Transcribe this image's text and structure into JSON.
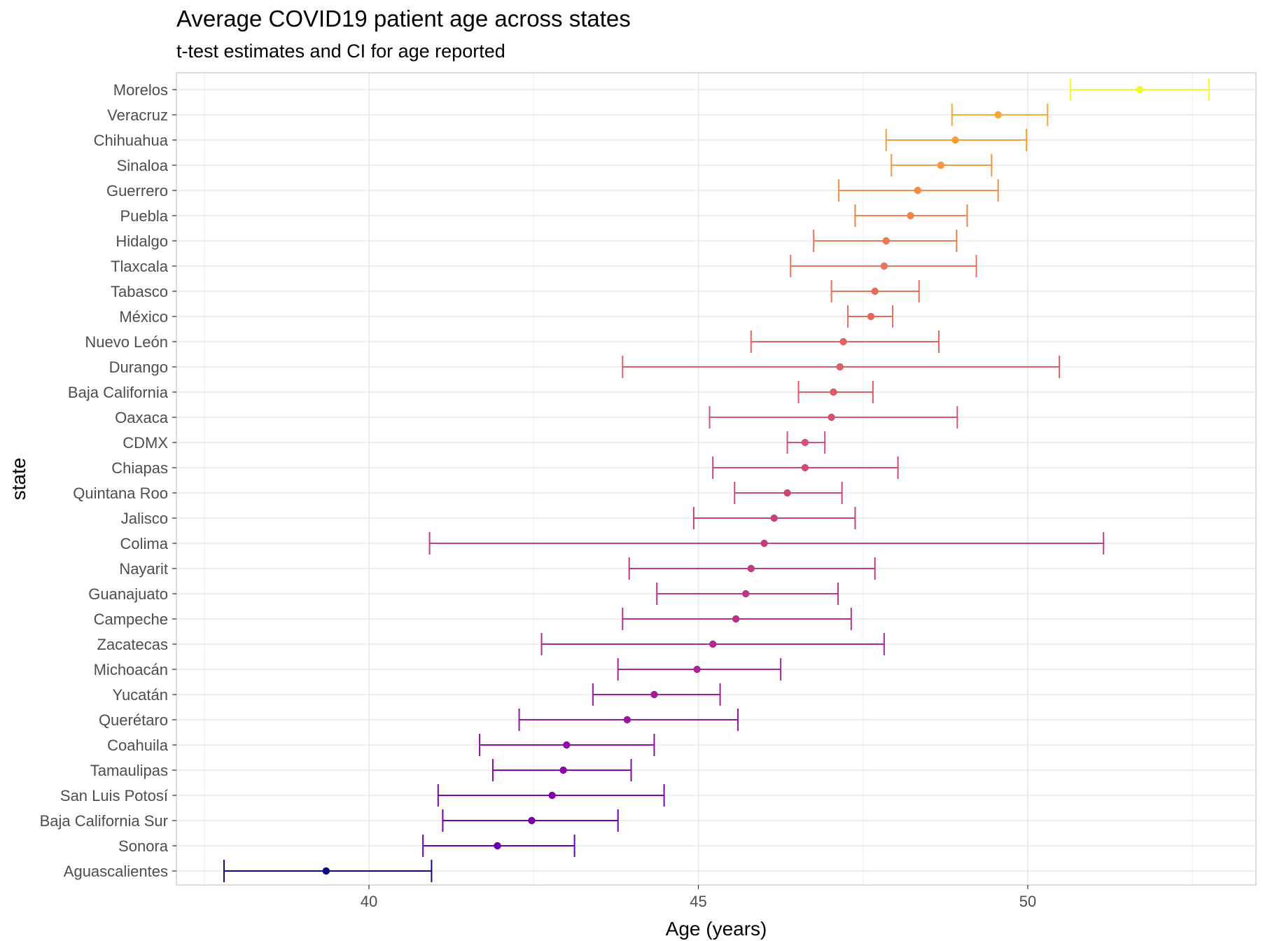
{
  "chart_data": {
    "type": "errorbar",
    "title": "Average COVID19 patient age across states",
    "subtitle": "t-test estimates and CI for age reported",
    "xlabel": "Age (years)",
    "ylabel": "state",
    "xlim": [
      37.0,
      53.4
    ],
    "xticks": [
      40,
      45,
      50
    ],
    "grid": true,
    "legend": "none",
    "color_scale": [
      "#0d0887",
      "#7e03a8",
      "#cc4778",
      "#f89540",
      "#f0f921"
    ],
    "rows": [
      {
        "state": "Morelos",
        "estimate": 51.7,
        "low": 50.65,
        "high": 52.75,
        "color": "#f0f921"
      },
      {
        "state": "Veracruz",
        "estimate": 49.55,
        "low": 48.85,
        "high": 50.3,
        "color": "#fca636"
      },
      {
        "state": "Chihuahua",
        "estimate": 48.9,
        "low": 47.85,
        "high": 49.98,
        "color": "#fa9e3b"
      },
      {
        "state": "Sinaloa",
        "estimate": 48.68,
        "low": 47.93,
        "high": 49.45,
        "color": "#f89540"
      },
      {
        "state": "Guerrero",
        "estimate": 48.33,
        "low": 47.13,
        "high": 49.55,
        "color": "#f58c46"
      },
      {
        "state": "Puebla",
        "estimate": 48.22,
        "low": 47.38,
        "high": 49.08,
        "color": "#f1844b"
      },
      {
        "state": "Hidalgo",
        "estimate": 47.85,
        "low": 46.75,
        "high": 48.92,
        "color": "#ed7953"
      },
      {
        "state": "Tlaxcala",
        "estimate": 47.82,
        "low": 46.4,
        "high": 49.22,
        "color": "#ea7457"
      },
      {
        "state": "Tabasco",
        "estimate": 47.68,
        "low": 47.02,
        "high": 48.35,
        "color": "#e76f5a"
      },
      {
        "state": "México",
        "estimate": 47.62,
        "low": 47.27,
        "high": 47.95,
        "color": "#e36a5d"
      },
      {
        "state": "Nuevo León",
        "estimate": 47.2,
        "low": 45.8,
        "high": 48.65,
        "color": "#e16462"
      },
      {
        "state": "Durango",
        "estimate": 47.15,
        "low": 43.85,
        "high": 50.48,
        "color": "#dd5e66"
      },
      {
        "state": "Baja California",
        "estimate": 47.05,
        "low": 46.52,
        "high": 47.65,
        "color": "#da5a6a"
      },
      {
        "state": "Oaxaca",
        "estimate": 47.02,
        "low": 45.17,
        "high": 48.93,
        "color": "#d6556d"
      },
      {
        "state": "CDMX",
        "estimate": 46.62,
        "low": 46.35,
        "high": 46.92,
        "color": "#d35171"
      },
      {
        "state": "Chiapas",
        "estimate": 46.62,
        "low": 45.22,
        "high": 48.03,
        "color": "#cf4c74"
      },
      {
        "state": "Quintana Roo",
        "estimate": 46.35,
        "low": 45.55,
        "high": 47.18,
        "color": "#cc4778"
      },
      {
        "state": "Jalisco",
        "estimate": 46.15,
        "low": 44.93,
        "high": 47.38,
        "color": "#c8437b"
      },
      {
        "state": "Colima",
        "estimate": 46.0,
        "low": 40.92,
        "high": 51.15,
        "color": "#c43e7f"
      },
      {
        "state": "Nayarit",
        "estimate": 45.8,
        "low": 43.95,
        "high": 47.68,
        "color": "#c03a83"
      },
      {
        "state": "Guanajuato",
        "estimate": 45.72,
        "low": 44.37,
        "high": 47.12,
        "color": "#bc3587"
      },
      {
        "state": "Campeche",
        "estimate": 45.57,
        "low": 43.85,
        "high": 47.32,
        "color": "#b7318a"
      },
      {
        "state": "Zacatecas",
        "estimate": 45.22,
        "low": 42.62,
        "high": 47.82,
        "color": "#b12a90"
      },
      {
        "state": "Michoacán",
        "estimate": 44.98,
        "low": 43.78,
        "high": 46.25,
        "color": "#aa2395"
      },
      {
        "state": "Yucatán",
        "estimate": 44.33,
        "low": 43.4,
        "high": 45.33,
        "color": "#a21d9a"
      },
      {
        "state": "Querétaro",
        "estimate": 43.92,
        "low": 42.28,
        "high": 45.6,
        "color": "#9a169f"
      },
      {
        "state": "Coahuila",
        "estimate": 43.0,
        "low": 41.68,
        "high": 44.33,
        "color": "#8f0da4"
      },
      {
        "state": "Tamaulipas",
        "estimate": 42.95,
        "low": 41.88,
        "high": 43.98,
        "color": "#8808a6"
      },
      {
        "state": "San Luis Potosí",
        "estimate": 42.78,
        "low": 41.05,
        "high": 44.48,
        "color": "#7e03a8"
      },
      {
        "state": "Baja California Sur",
        "estimate": 42.47,
        "low": 41.12,
        "high": 43.78,
        "color": "#7201a8"
      },
      {
        "state": "Sonora",
        "estimate": 41.95,
        "low": 40.82,
        "high": 43.12,
        "color": "#6a00a8"
      },
      {
        "state": "Aguascalientes",
        "estimate": 39.35,
        "low": 37.8,
        "high": 40.95,
        "color": "#0d0887"
      }
    ]
  }
}
